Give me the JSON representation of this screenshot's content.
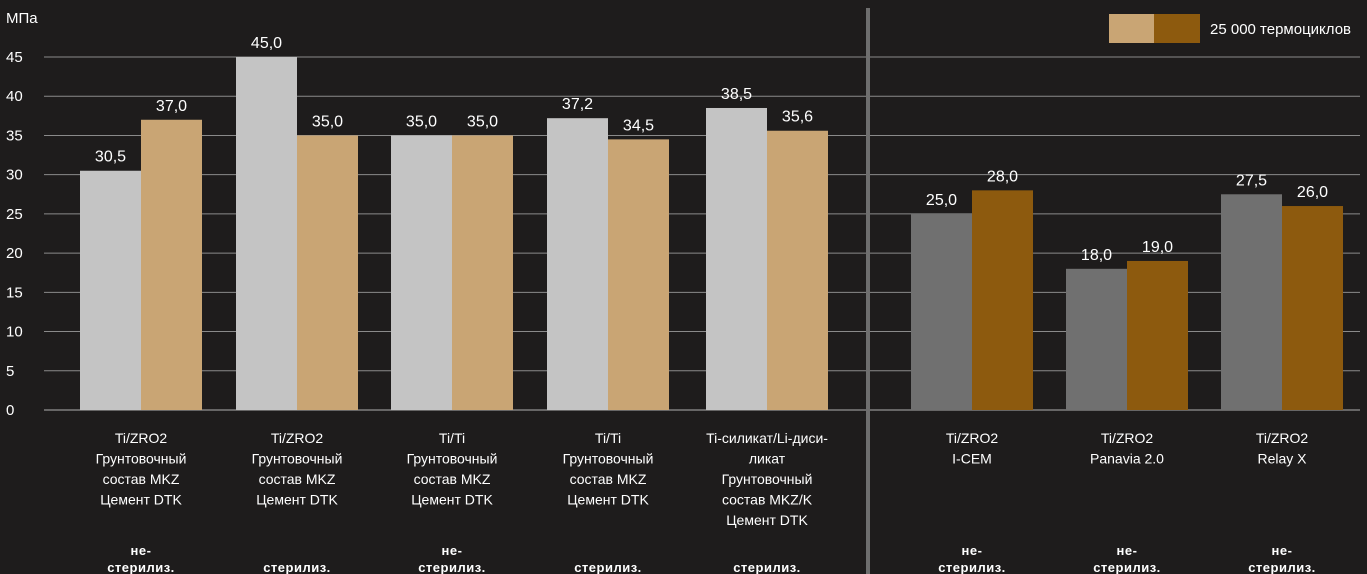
{
  "chart_data": {
    "type": "bar",
    "ylabel": "МПа",
    "ylim": [
      0,
      45
    ],
    "yticks": [
      0,
      5,
      10,
      15,
      20,
      25,
      30,
      35,
      40,
      45
    ],
    "legend": {
      "label": "25 000 термоциклов",
      "position": "top-right",
      "colors": [
        "#c9a574",
        "#8d5a0e"
      ]
    },
    "colors": {
      "background": "#1e1c1c",
      "group1_before": "#c4c4c4",
      "group1_after": "#c9a574",
      "group2_before": "#707070",
      "group2_after": "#8d5a0e",
      "divider": "#6e6e6e",
      "axis": "#b0b0b0"
    },
    "groups": [
      {
        "label_lines": [
          "Ti/ZRO2",
          "Грунтовочный",
          "состав MKZ",
          "Цемент DTK"
        ],
        "status_lines": [
          "не-",
          "стерилиз."
        ],
        "values": [
          30.5,
          37.0
        ],
        "value_labels": [
          "30,5",
          "37,0"
        ]
      },
      {
        "label_lines": [
          "Ti/ZRO2",
          "Грунтовочный",
          "состав MKZ",
          "Цемент DTK"
        ],
        "status_lines": [
          "стерилиз."
        ],
        "values": [
          45.0,
          35.0
        ],
        "value_labels": [
          "45,0",
          "35,0"
        ]
      },
      {
        "label_lines": [
          "Ti/Ti",
          "Грунтовочный",
          "состав MKZ",
          "Цемент DTK"
        ],
        "status_lines": [
          "не-",
          "стерилиз."
        ],
        "values": [
          35.0,
          35.0
        ],
        "value_labels": [
          "35,0",
          "35,0"
        ]
      },
      {
        "label_lines": [
          "Ti/Ti",
          "Грунтовочный",
          "состав MKZ",
          "Цемент DTK"
        ],
        "status_lines": [
          "стерилиз."
        ],
        "values": [
          37.2,
          34.5
        ],
        "value_labels": [
          "37,2",
          "34,5"
        ]
      },
      {
        "label_lines": [
          "Ti-силикат/Li-диси-",
          "ликат",
          "Грунтовочный",
          "состав MKZ/K",
          "Цемент DTK"
        ],
        "status_lines": [
          "стерилиз."
        ],
        "values": [
          38.5,
          35.6
        ],
        "value_labels": [
          "38,5",
          "35,6"
        ]
      },
      {
        "label_lines": [
          "Ti/ZRO2",
          "I-CEM"
        ],
        "status_lines": [
          "не-",
          "стерилиз."
        ],
        "values": [
          25.0,
          28.0
        ],
        "value_labels": [
          "25,0",
          "28,0"
        ]
      },
      {
        "label_lines": [
          "Ti/ZRO2",
          "Panavia 2.0"
        ],
        "status_lines": [
          "не-",
          "стерилиз."
        ],
        "values": [
          18.0,
          19.0
        ],
        "value_labels": [
          "18,0",
          "19,0"
        ]
      },
      {
        "label_lines": [
          "Ti/ZRO2",
          "Relay X"
        ],
        "status_lines": [
          "не-",
          "стерилиз."
        ],
        "values": [
          27.5,
          26.0
        ],
        "value_labels": [
          "27,5",
          "26,0"
        ]
      }
    ]
  }
}
